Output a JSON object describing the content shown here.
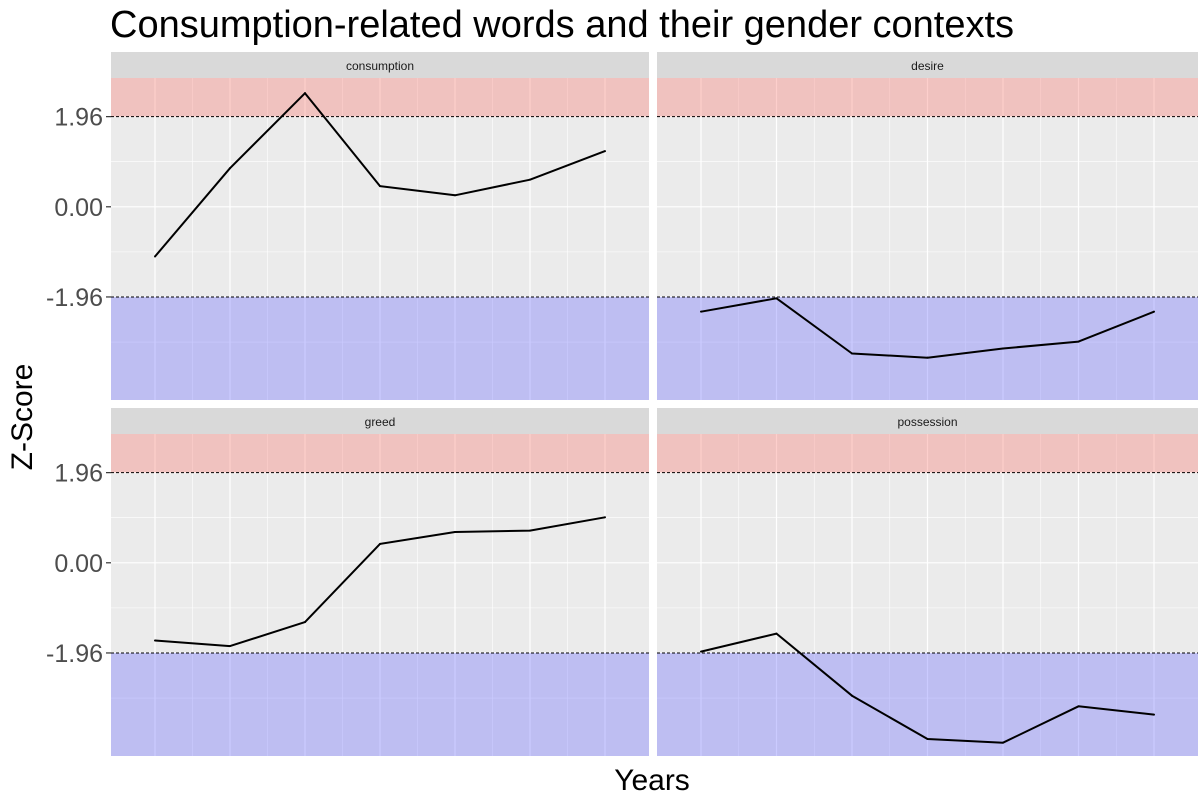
{
  "chart_data": {
    "type": "line",
    "title": "Consumption-related words and their gender contexts",
    "xlabel": "Years",
    "ylabel": "Z-Score",
    "y_ticks": [
      {
        "value": 1.96,
        "label": "1.96"
      },
      {
        "value": 0.0,
        "label": "0.00"
      },
      {
        "value": -1.96,
        "label": "-1.96"
      }
    ],
    "ylim": [
      -4.2,
      2.8
    ],
    "x_count": 7,
    "threshold": 1.96,
    "bands": {
      "upper_color": "#f8766d",
      "lower_color": "#6b6bff",
      "opacity": 0.35
    },
    "panel_bg": "#ebebeb",
    "strip_bg": "#d9d9d9",
    "line_color": "#000000",
    "grid": true,
    "panels": [
      {
        "name": "consumption",
        "values": [
          -1.08,
          0.84,
          2.47,
          0.45,
          0.25,
          0.59,
          1.21
        ]
      },
      {
        "name": "desire",
        "values": [
          -2.28,
          -1.99,
          -3.19,
          -3.28,
          -3.08,
          -2.93,
          -2.28
        ]
      },
      {
        "name": "greed",
        "values": [
          -1.69,
          -1.81,
          -1.29,
          0.41,
          0.67,
          0.7,
          0.99
        ]
      },
      {
        "name": "possession",
        "values": [
          -1.93,
          -1.54,
          -2.89,
          -3.83,
          -3.91,
          -3.12,
          -3.3
        ]
      }
    ]
  }
}
